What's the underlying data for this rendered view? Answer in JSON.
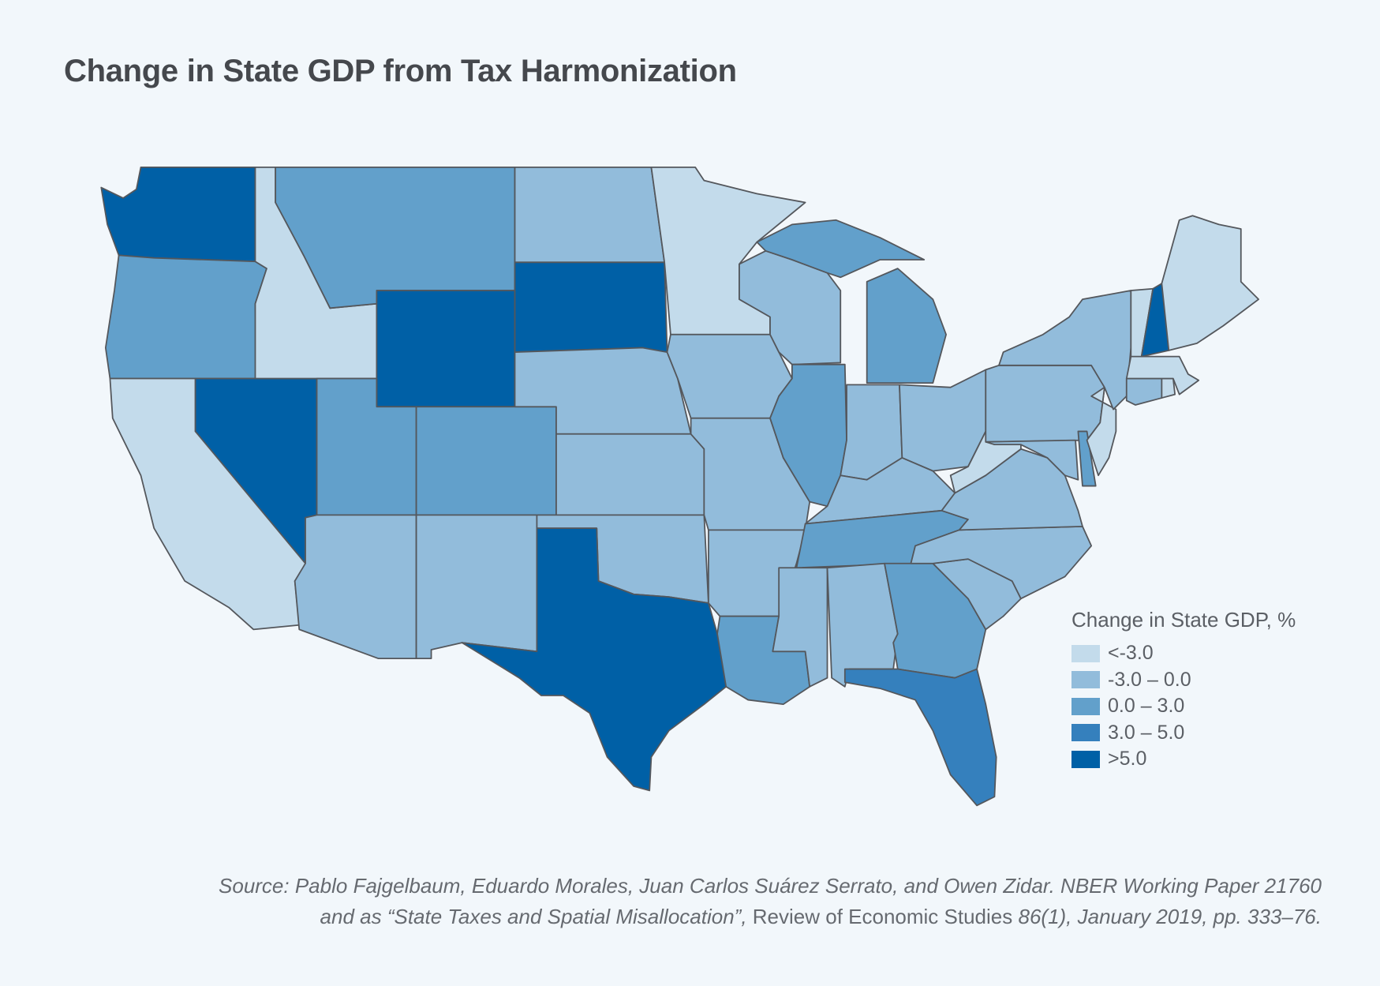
{
  "title": "Change in State GDP from Tax Harmonization",
  "legend": {
    "title": "Change in State GDP, %",
    "items": [
      {
        "label": "<-3.0",
        "color": "#c3dbeb"
      },
      {
        "label": "-3.0 – 0.0",
        "color": "#92bcdb"
      },
      {
        "label": " 0.0 – 3.0",
        "color": "#62a0cb"
      },
      {
        "label": " 3.0 – 5.0",
        "color": "#3580bd"
      },
      {
        "label": ">5.0",
        "color": "#0060a6"
      }
    ]
  },
  "source": {
    "line1": "Source: Pablo Fajgelbaum, Eduardo Morales, Juan Carlos Suárez Serrato, and Owen Zidar. NBER Working Paper 21760",
    "line2_italic_a": "and as “State Taxes and Spatial Misallocation”,",
    "line2_plain": " Review of Economic Studies ",
    "line2_italic_b": "86(1), January 2019, pp. 333–76."
  },
  "chart_data": {
    "type": "choropleth",
    "title": "Change in State GDP from Tax Harmonization",
    "legend_title": "Change in State GDP, %",
    "bins": [
      "<-3.0",
      "-3.0 – 0.0",
      "0.0 – 3.0",
      "3.0 – 5.0",
      ">5.0"
    ],
    "state_bin": {
      "WA": 4,
      "OR": 2,
      "CA": 0,
      "NV": 4,
      "ID": 0,
      "MT": 2,
      "WY": 4,
      "UT": 2,
      "CO": 2,
      "AZ": 1,
      "NM": 1,
      "ND": 1,
      "SD": 4,
      "NE": 1,
      "KS": 1,
      "OK": 1,
      "TX": 4,
      "MN": 0,
      "IA": 1,
      "MO": 1,
      "AR": 1,
      "LA": 2,
      "WI": 1,
      "IL": 2,
      "MI": 2,
      "IN": 1,
      "OH": 1,
      "KY": 1,
      "TN": 2,
      "MS": 1,
      "AL": 1,
      "GA": 2,
      "FL": 3,
      "SC": 1,
      "NC": 1,
      "VA": 1,
      "WV": 0,
      "PA": 1,
      "MD": 1,
      "DE": 2,
      "NJ": 0,
      "NY": 1,
      "CT": 1,
      "RI": 0,
      "MA": 0,
      "VT": 0,
      "NH": 4,
      "ME": 0
    }
  }
}
